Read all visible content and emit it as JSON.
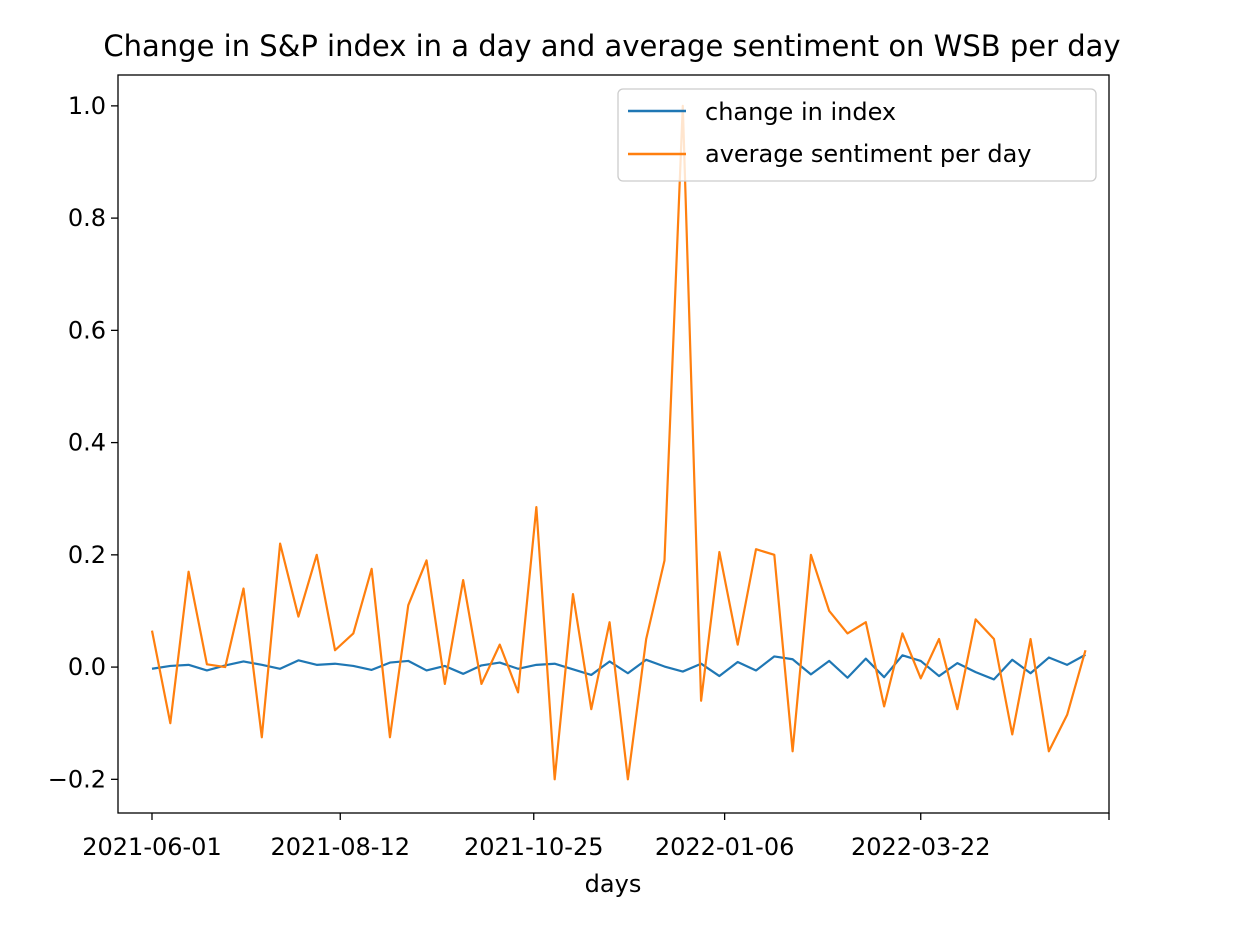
{
  "chart_data": {
    "type": "line",
    "title": "Change in S&P index in a day and average sentiment on WSB per day",
    "xlabel": "days",
    "ylabel": "",
    "x_tick_labels": [
      "2021-06-01",
      "2021-08-12",
      "2021-10-25",
      "2022-01-06",
      "2022-03-22"
    ],
    "y_ticks": [
      -0.2,
      0.0,
      0.2,
      0.4,
      0.6,
      0.8,
      1.0
    ],
    "y_tick_labels": [
      "−0.2",
      "0.0",
      "0.2",
      "0.4",
      "0.6",
      "0.8",
      "1.0"
    ],
    "ylim": [
      -0.26,
      1.055
    ],
    "xlim": [
      "2021-05-19",
      "2022-06-02"
    ],
    "grid": false,
    "legend_position": "top-right",
    "x": [
      "2021-06-01",
      "2021-06-08",
      "2021-06-15",
      "2021-06-22",
      "2021-06-29",
      "2021-07-06",
      "2021-07-13",
      "2021-07-20",
      "2021-07-27",
      "2021-08-03",
      "2021-08-10",
      "2021-08-17",
      "2021-08-24",
      "2021-08-31",
      "2021-09-07",
      "2021-09-14",
      "2021-09-21",
      "2021-09-28",
      "2021-10-05",
      "2021-10-12",
      "2021-10-19",
      "2021-10-26",
      "2021-11-02",
      "2021-11-09",
      "2021-11-16",
      "2021-11-23",
      "2021-11-30",
      "2021-12-07",
      "2021-12-14",
      "2021-12-21",
      "2021-12-28",
      "2022-01-04",
      "2022-01-11",
      "2022-01-18",
      "2022-01-25",
      "2022-02-01",
      "2022-02-08",
      "2022-02-15",
      "2022-02-22",
      "2022-03-01",
      "2022-03-08",
      "2022-03-15",
      "2022-03-22",
      "2022-03-29",
      "2022-04-05",
      "2022-04-12",
      "2022-04-19",
      "2022-04-26",
      "2022-05-03",
      "2022-05-10",
      "2022-05-17",
      "2022-05-24"
    ],
    "series": [
      {
        "name": "change in index",
        "color": "#1f77b4",
        "values": [
          -0.003,
          0.002,
          0.004,
          -0.006,
          0.003,
          0.01,
          0.004,
          -0.003,
          0.012,
          0.004,
          0.006,
          0.002,
          -0.005,
          0.008,
          0.011,
          -0.006,
          0.002,
          -0.012,
          0.003,
          0.008,
          -0.003,
          0.004,
          0.006,
          -0.004,
          -0.014,
          0.01,
          -0.011,
          0.013,
          0.001,
          -0.008,
          0.006,
          -0.016,
          0.009,
          -0.006,
          0.019,
          0.014,
          -0.013,
          0.011,
          -0.019,
          0.015,
          -0.018,
          0.021,
          0.011,
          -0.016,
          0.007,
          -0.009,
          -0.022,
          0.013,
          -0.011,
          0.017,
          0.004,
          0.022
        ]
      },
      {
        "name": "average sentiment per day",
        "color": "#ff7f0e",
        "values": [
          0.065,
          -0.1,
          0.17,
          0.005,
          0.0,
          0.14,
          -0.125,
          0.22,
          0.09,
          0.2,
          0.03,
          0.06,
          0.175,
          -0.125,
          0.11,
          0.19,
          -0.03,
          0.155,
          -0.03,
          0.04,
          -0.045,
          0.285,
          -0.2,
          0.13,
          -0.075,
          0.08,
          -0.2,
          0.05,
          0.19,
          1.0,
          -0.06,
          0.205,
          0.04,
          0.21,
          0.2,
          -0.15,
          0.2,
          0.1,
          0.06,
          0.08,
          -0.07,
          0.06,
          -0.02,
          0.05,
          -0.075,
          0.085,
          0.05,
          -0.12,
          0.05,
          -0.15,
          -0.085,
          0.03
        ]
      }
    ]
  }
}
